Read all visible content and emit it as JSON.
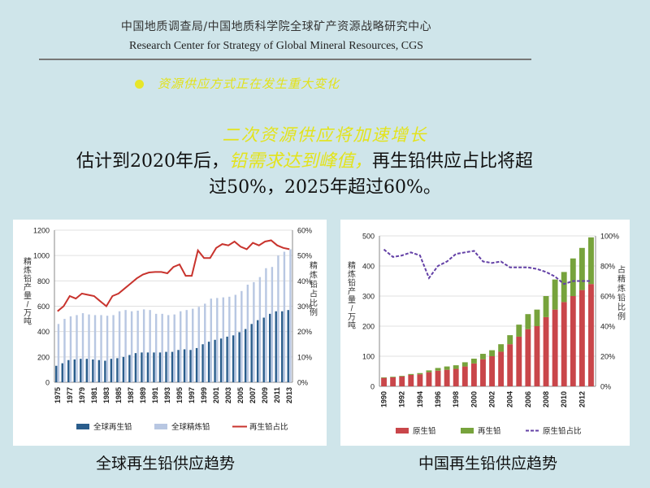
{
  "header": {
    "org_cn": "中国地质调查局/中国地质科学院全球矿产资源战略研究中心",
    "org_en": "Research Center for Strategy of Global Mineral Resources, CGS"
  },
  "bullet": {
    "text": "资源供应方式正在发生重大变化",
    "color": "#e7e62a"
  },
  "headline": "二次资源供应将加速增长",
  "body": {
    "part1": "估计到2020年后，",
    "highlight": "铅需求达到峰值，",
    "part2": "再生铅供应占比将超",
    "line2": "过50%，2025年超过60%。"
  },
  "captions": {
    "left": "全球再生铅供应趋势",
    "right": "中国再生铅供应趋势"
  },
  "chart_data": [
    {
      "type": "bar",
      "title": "",
      "ylabel": "精炼铅产量/万吨",
      "y2label": "精炼铅占比例",
      "ylim": [
        0,
        1200
      ],
      "yticks": [
        0,
        200,
        400,
        600,
        800,
        1000,
        1200
      ],
      "y2ticks": [
        "0%",
        "10%",
        "20%",
        "30%",
        "40%",
        "50%",
        "60%"
      ],
      "y2lim": [
        0,
        60
      ],
      "xticks": [
        "1975",
        "1977",
        "1979",
        "1981",
        "1983",
        "1985",
        "1987",
        "1989",
        "1991",
        "1993",
        "1995",
        "1997",
        "1999",
        "2001",
        "2003",
        "2005",
        "2007",
        "2009",
        "2011",
        "2013"
      ],
      "x": [
        1975,
        1976,
        1977,
        1978,
        1979,
        1980,
        1981,
        1982,
        1983,
        1984,
        1985,
        1986,
        1987,
        1988,
        1989,
        1990,
        1991,
        1992,
        1993,
        1994,
        1995,
        1996,
        1997,
        1998,
        1999,
        2000,
        2001,
        2002,
        2003,
        2004,
        2005,
        2006,
        2007,
        2008,
        2009,
        2010,
        2011,
        2012,
        2013
      ],
      "series": [
        {
          "name": "全球再生铅",
          "kind": "bar",
          "color": "#2a5d8c",
          "values": [
            130,
            150,
            175,
            180,
            185,
            185,
            180,
            175,
            170,
            185,
            190,
            200,
            215,
            230,
            235,
            235,
            235,
            235,
            240,
            240,
            255,
            260,
            255,
            270,
            300,
            320,
            335,
            345,
            360,
            370,
            395,
            420,
            460,
            490,
            510,
            540,
            560,
            560,
            570
          ]
        },
        {
          "name": "全球精炼铅",
          "kind": "bar",
          "color": "#b8c7e2",
          "values": [
            460,
            500,
            520,
            530,
            545,
            535,
            530,
            530,
            525,
            530,
            560,
            570,
            560,
            565,
            575,
            570,
            540,
            540,
            530,
            535,
            560,
            570,
            580,
            595,
            620,
            660,
            665,
            670,
            675,
            690,
            720,
            770,
            790,
            830,
            900,
            910,
            1000,
            1030,
            1050
          ]
        },
        {
          "name": "再生铅占比",
          "kind": "line",
          "axis": "right",
          "color": "#c8332d",
          "values": [
            28,
            30,
            34,
            33,
            35,
            34.5,
            34,
            32,
            30,
            34,
            35,
            37,
            39,
            41,
            42.5,
            43.3,
            43.5,
            43.5,
            43,
            45.5,
            46.5,
            42,
            42,
            52,
            49,
            49,
            53,
            54.5,
            54,
            55.5,
            53.5,
            52.5,
            55,
            54,
            55.5,
            56,
            54,
            53,
            52.5
          ]
        }
      ],
      "legend": "bottom"
    },
    {
      "type": "bar",
      "title": "",
      "ylabel": "精炼铅产量/万吨",
      "y2label": "占精炼铅比例",
      "ylim": [
        0,
        500
      ],
      "yticks": [
        0,
        100,
        200,
        300,
        400,
        500
      ],
      "y2ticks": [
        "0%",
        "20%",
        "40%",
        "60%",
        "80%",
        "100%"
      ],
      "y2lim": [
        0,
        100
      ],
      "xticks": [
        "1990",
        "1992",
        "1994",
        "1996",
        "1998",
        "2000",
        "2002",
        "2004",
        "2006",
        "2008",
        "2010",
        "2012"
      ],
      "x": [
        1990,
        1991,
        1992,
        1993,
        1994,
        1995,
        1996,
        1997,
        1998,
        1999,
        2000,
        2001,
        2002,
        2003,
        2004,
        2005,
        2006,
        2007,
        2008,
        2009,
        2010,
        2011,
        2012,
        2013
      ],
      "series": [
        {
          "name": "原生铅",
          "kind": "bar",
          "stack": true,
          "color": "#c9464a",
          "values": [
            28,
            30,
            33,
            38,
            40,
            47,
            52,
            55,
            58,
            66,
            76,
            90,
            100,
            115,
            140,
            165,
            190,
            200,
            230,
            255,
            280,
            300,
            320,
            340
          ]
        },
        {
          "name": "再生铅",
          "kind": "bar",
          "stack": true,
          "color": "#77a33c",
          "values": [
            2,
            2,
            2,
            3,
            4,
            6,
            9,
            11,
            12,
            14,
            16,
            18,
            20,
            25,
            30,
            40,
            50,
            55,
            70,
            100,
            100,
            125,
            140,
            155
          ]
        },
        {
          "name": "原生铅占比",
          "kind": "line",
          "dashed": true,
          "axis": "right",
          "color": "#6340a6",
          "values": [
            91,
            86,
            87,
            89,
            87,
            72,
            80,
            83,
            88,
            89,
            90,
            83,
            82,
            83,
            79,
            79,
            79,
            78,
            76,
            73,
            68,
            70,
            70,
            70
          ]
        }
      ],
      "legend": "bottom"
    }
  ]
}
